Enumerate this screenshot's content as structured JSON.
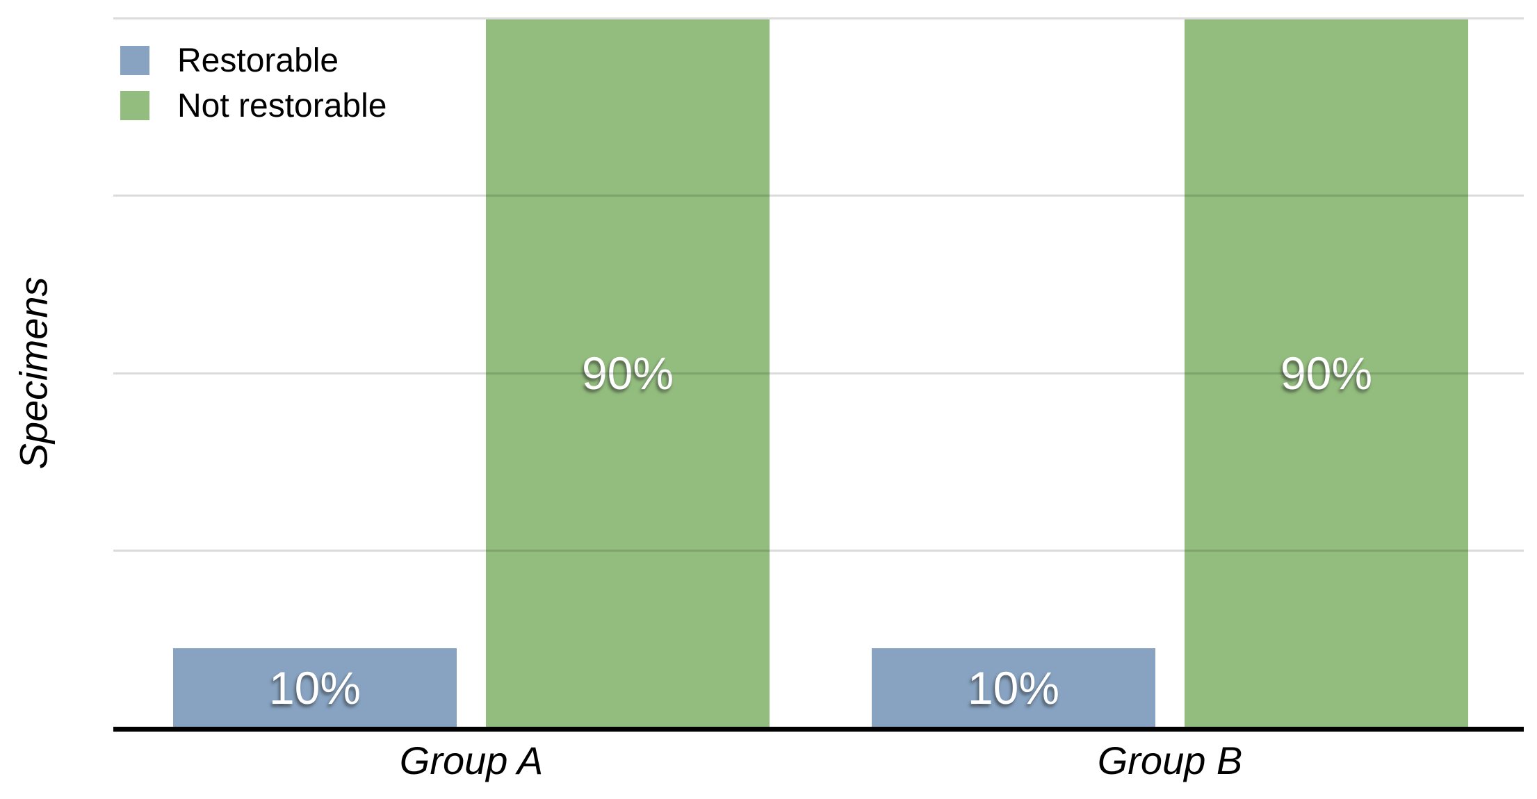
{
  "chart_data": {
    "type": "bar",
    "title": "",
    "xlabel": "",
    "ylabel": "Specimens",
    "categories": [
      "Group A",
      "Group B"
    ],
    "series": [
      {
        "name": "Restorable",
        "color": "#87A3C1",
        "values": [
          10,
          10
        ],
        "labels": [
          "10%",
          "10%"
        ]
      },
      {
        "name": "Not restorable",
        "color": "#93BD7E",
        "values": [
          90,
          90
        ],
        "labels": [
          "90%",
          "90%"
        ]
      }
    ],
    "ylim": [
      0,
      90
    ],
    "value_unit": "percent",
    "grid": "horizontal",
    "gridline_divisions": 4,
    "y_tick_labels_shown": false,
    "legend_position": "top-left",
    "bar_label_color": "#ffffff",
    "axis_color": "#000000",
    "gridline_color": "#d9d9d9"
  }
}
